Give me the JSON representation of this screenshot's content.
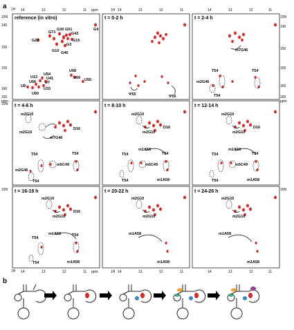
{
  "figure": {
    "panel_a_label": "a",
    "panel_b_label": "b",
    "axis": {
      "h_unit": "1H",
      "n_unit": "15N",
      "ppm": "ppm",
      "x_ticks": [
        "14",
        "13",
        "12",
        "11"
      ],
      "y_ticks": [
        "145",
        "150",
        "155",
        "160",
        "165"
      ]
    },
    "panels": [
      {
        "title": "reference (in vitro)",
        "labels": [
          "G22",
          "G71",
          "G30",
          "G51",
          "G42",
          "G15",
          "G3",
          "G10",
          "G46",
          "G4",
          "U13",
          "U54",
          "U68",
          "U55",
          "U8",
          "U66",
          "U41",
          "U7",
          "U33",
          "U50",
          "U69"
        ]
      },
      {
        "title": "t = 0-2 h",
        "labels": [
          "Ψ55",
          "Ψ55"
        ]
      },
      {
        "title": "t = 2-4 h",
        "labels": [
          "m7G46",
          "T54",
          "T54",
          "m2G46",
          "T54"
        ]
      },
      {
        "title": "t = 4-6 h",
        "labels": [
          "m2G10",
          "m2G10",
          "D16",
          "m7G46",
          "T54",
          "T54",
          "m5C49",
          "m2G46",
          "T54"
        ]
      },
      {
        "title": "t = 8-10 h",
        "labels": [
          "m2G10",
          "m2G10",
          "D16",
          "m1A58",
          "T54",
          "m5C49",
          "T54",
          "T54",
          "m1A58"
        ]
      },
      {
        "title": "t = 12-14 h",
        "labels": [
          "m2G10",
          "m2G10",
          "D16",
          "m1A58",
          "T54",
          "m5C49",
          "T54",
          "T54",
          "m1A58"
        ]
      },
      {
        "title": "t = 16-18 h",
        "labels": [
          "m2G10",
          "m2G10",
          "D16",
          "m1A58",
          "T54",
          "T54",
          "m1A58",
          "T54"
        ]
      },
      {
        "title": "t = 20-22 h",
        "labels": [
          "m2G10",
          "m2G10",
          "m1A58",
          "m1A58"
        ]
      },
      {
        "title": "t = 24-26 h",
        "labels": [
          "m2G10",
          "m2G10",
          "m1A58",
          "m1A58"
        ]
      }
    ]
  }
}
